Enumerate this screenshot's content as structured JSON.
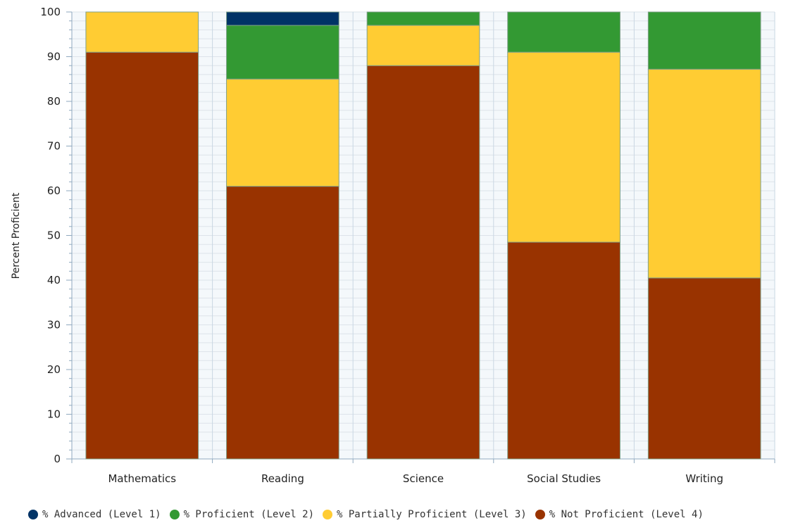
{
  "chart_data": {
    "type": "bar",
    "stacked": true,
    "title": "",
    "xlabel": "",
    "ylabel": "Percent Proficient",
    "ylim": [
      0,
      100
    ],
    "yticks": [
      0,
      10,
      20,
      30,
      40,
      50,
      60,
      70,
      80,
      90,
      100
    ],
    "grid": true,
    "legend_position": "bottom",
    "categories": [
      "Mathematics",
      "Reading",
      "Science",
      "Social Studies",
      "Writing"
    ],
    "series": [
      {
        "name": "% Not Proficient (Level 4)",
        "color": "#993300",
        "values": [
          91,
          61,
          88,
          48.5,
          40.5
        ]
      },
      {
        "name": "% Partially Proficient (Level 3)",
        "color": "#ffcc33",
        "values": [
          9,
          24,
          9,
          42.5,
          46.7
        ]
      },
      {
        "name": "% Proficient (Level 2)",
        "color": "#339933",
        "values": [
          0,
          12,
          3,
          9,
          12.8
        ]
      },
      {
        "name": "% Advanced (Level 1)",
        "color": "#003366",
        "values": [
          0,
          3,
          0,
          0,
          0
        ]
      }
    ],
    "legend_order": [
      3,
      2,
      1,
      0
    ]
  }
}
